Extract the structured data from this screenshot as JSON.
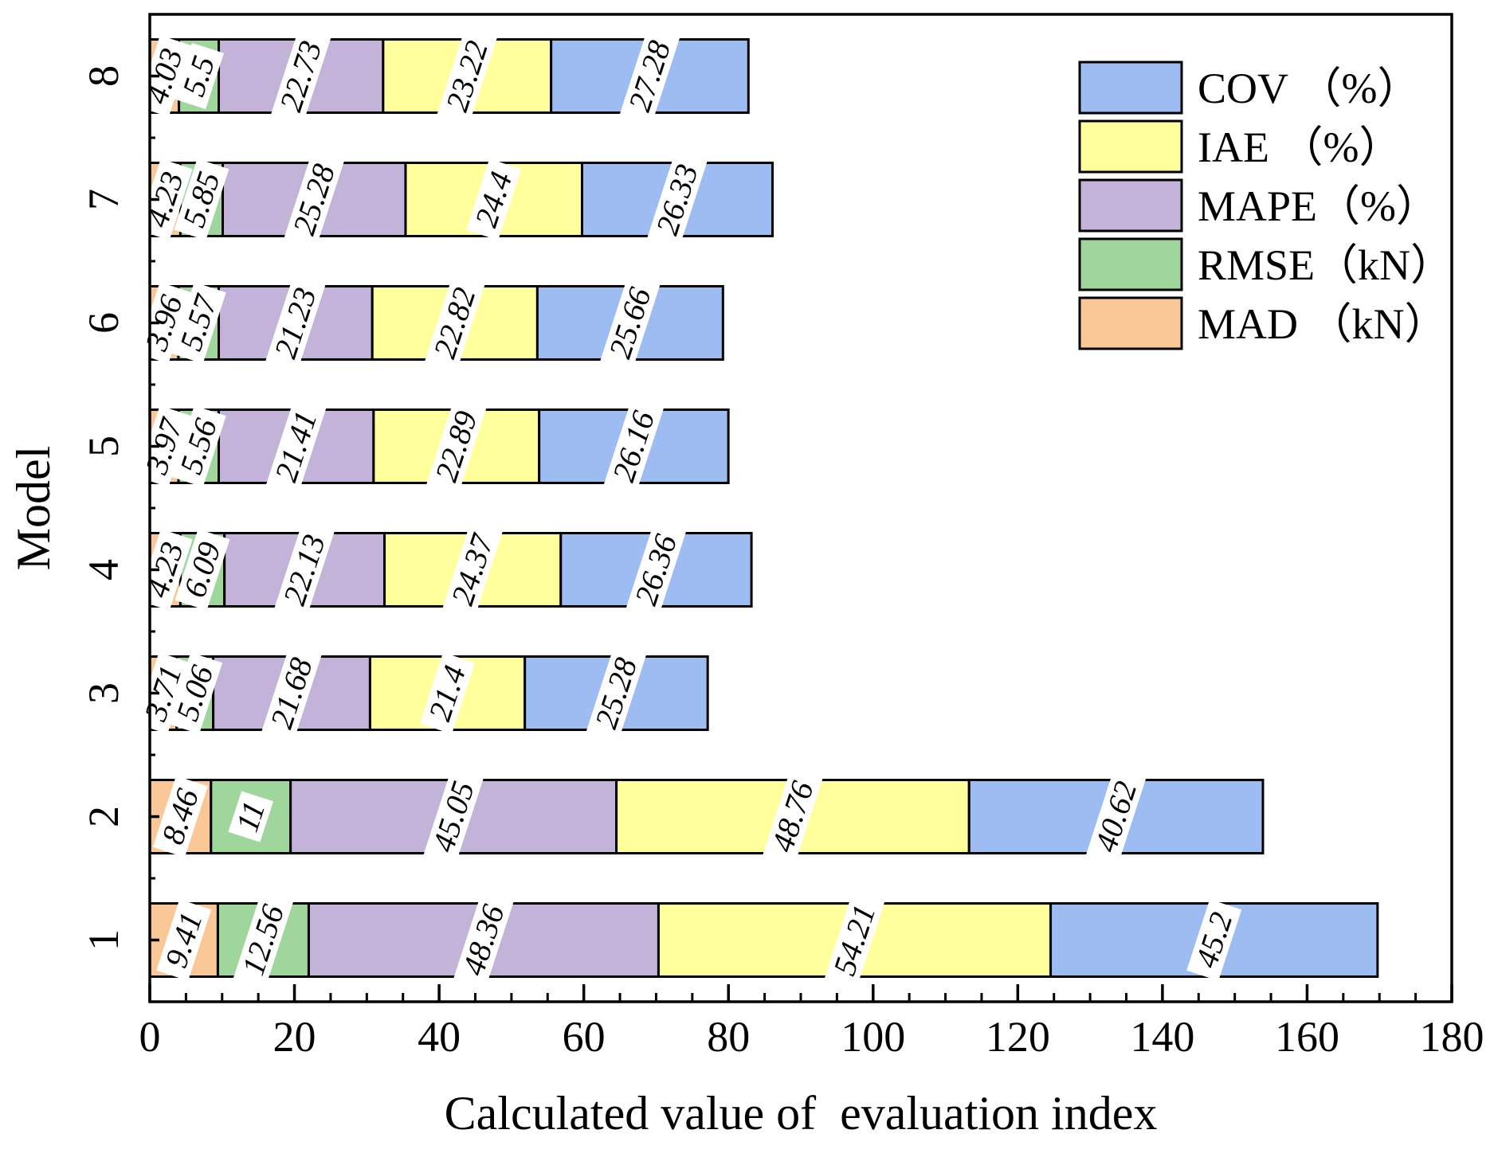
{
  "chart_data": {
    "type": "bar",
    "orientation": "horizontal",
    "stacked": true,
    "xlabel": "Calculated value of  evaluation index",
    "ylabel": "Model",
    "xlim": [
      0,
      180
    ],
    "x_ticks": [
      "0",
      "20",
      "40",
      "60",
      "80",
      "100",
      "120",
      "140",
      "160",
      "180"
    ],
    "categories": [
      "1",
      "2",
      "3",
      "4",
      "5",
      "6",
      "7",
      "8"
    ],
    "series": [
      {
        "name": "MAD",
        "legend": "MAD （kN）",
        "color": "#FAC896",
        "values": [
          9.41,
          8.46,
          3.71,
          4.23,
          3.97,
          3.96,
          4.23,
          4.03
        ],
        "labels": [
          "9.41",
          "8.46",
          "3.71",
          "4.23",
          "3.97",
          "3.96",
          "4.23",
          "4.03"
        ]
      },
      {
        "name": "RMSE",
        "legend": "RMSE（kN）",
        "color": "#9ED69B",
        "values": [
          12.56,
          11,
          5.06,
          6.09,
          5.56,
          5.57,
          5.85,
          5.5
        ],
        "labels": [
          "12.56",
          "11",
          "5.06",
          "6.09",
          "5.56",
          "5.57",
          "5.85",
          "5.5"
        ]
      },
      {
        "name": "MAPE",
        "legend": "MAPE（%）",
        "color": "#C3B3D8",
        "values": [
          48.36,
          45.05,
          21.68,
          22.13,
          21.41,
          21.23,
          25.28,
          22.73
        ],
        "labels": [
          "48.36",
          "45.05",
          "21.68",
          "22.13",
          "21.41",
          "21.23",
          "25.28",
          "22.73"
        ]
      },
      {
        "name": "IAE",
        "legend": "IAE （%）",
        "color": "#FFFF9C",
        "values": [
          54.21,
          48.76,
          21.4,
          24.37,
          22.89,
          22.82,
          24.4,
          23.22
        ],
        "labels": [
          "54.21",
          "48.76",
          "21.4",
          "24.37",
          "22.89",
          "22.82",
          "24.4",
          "23.22"
        ]
      },
      {
        "name": "COV",
        "legend": "COV （%）",
        "color": "#9DBDF2",
        "values": [
          45.2,
          40.62,
          25.28,
          26.36,
          26.16,
          25.66,
          26.33,
          27.28
        ],
        "labels": [
          "45.2",
          "40.62",
          "25.28",
          "26.36",
          "26.16",
          "25.66",
          "26.33",
          "27.28"
        ]
      }
    ],
    "legend_order": [
      "COV",
      "IAE",
      "MAPE",
      "RMSE",
      "MAD"
    ],
    "legend_position": "top-right",
    "grid": false
  }
}
